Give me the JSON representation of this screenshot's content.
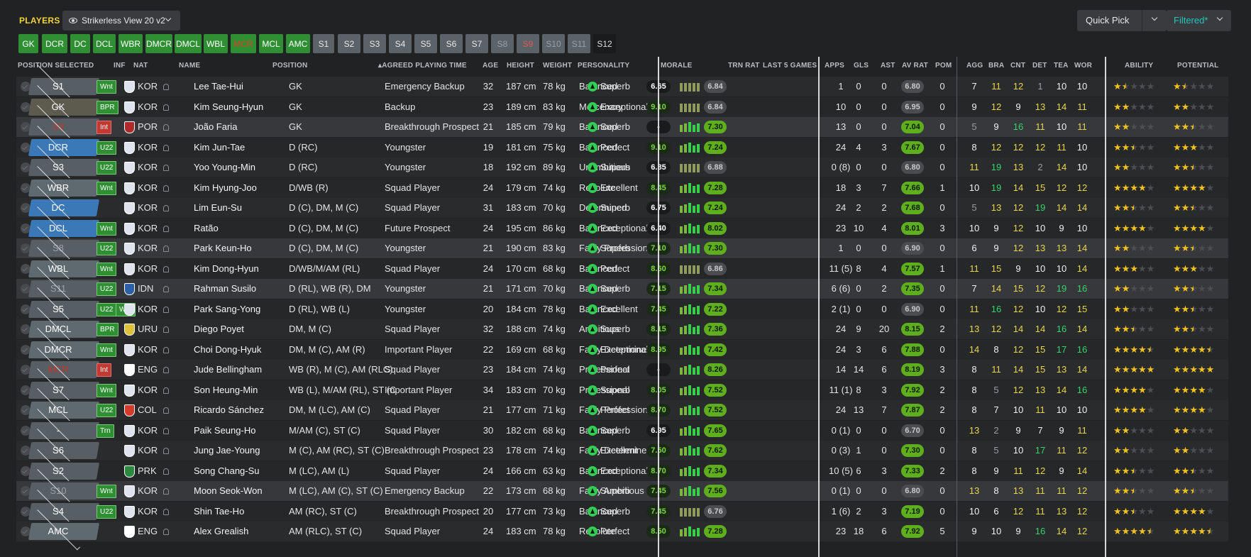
{
  "header": {
    "title": "PLAYERS",
    "view": "Strikerless View 20 v2",
    "quick_pick": "Quick Pick",
    "filtered": "Filtered*"
  },
  "tabs": [
    {
      "label": "GK",
      "kind": "g"
    },
    {
      "label": "DCR",
      "kind": "g"
    },
    {
      "label": "DC",
      "kind": "g"
    },
    {
      "label": "DCL",
      "kind": "g"
    },
    {
      "label": "WBR",
      "kind": "g"
    },
    {
      "label": "DMCR",
      "kind": "g"
    },
    {
      "label": "DMCL",
      "kind": "g"
    },
    {
      "label": "WBL",
      "kind": "g"
    },
    {
      "label": "MCR",
      "kind": "r"
    },
    {
      "label": "MCL",
      "kind": "g"
    },
    {
      "label": "AMC",
      "kind": "g"
    },
    {
      "label": "S1",
      "kind": "s"
    },
    {
      "label": "S2",
      "kind": "s"
    },
    {
      "label": "S3",
      "kind": "s"
    },
    {
      "label": "S4",
      "kind": "s"
    },
    {
      "label": "S5",
      "kind": "s"
    },
    {
      "label": "S6",
      "kind": "s"
    },
    {
      "label": "S7",
      "kind": "s"
    },
    {
      "label": "S8",
      "kind": "s dim"
    },
    {
      "label": "S9",
      "kind": "s red"
    },
    {
      "label": "S10",
      "kind": "s dim"
    },
    {
      "label": "S11",
      "kind": "s dim"
    },
    {
      "label": "S12",
      "kind": "k"
    }
  ],
  "columns": {
    "pos_sel": "POSITION SELECTED",
    "inf": "INF",
    "nat": "NAT",
    "name": "NAME",
    "position": "POSITION",
    "apt": "AGREED PLAYING TIME",
    "age": "AGE",
    "height": "HEIGHT",
    "weight": "WEIGHT",
    "personality": "PERSONALITY",
    "morale": "MORALE",
    "trn": "TRN RAT",
    "last5": "LAST 5 GAMES",
    "apps": "APPS",
    "gls": "GLS",
    "ast": "AST",
    "avrat": "AV RAT",
    "pom": "POM",
    "agg": "AGG",
    "bra": "BRA",
    "cnt": "CNT",
    "det": "DET",
    "tea": "TEA",
    "wor": "WOR",
    "ability": "ABILITY",
    "potential": "POTENTIAL"
  },
  "rows": [
    {
      "sel": "S1",
      "selc": "#575e64",
      "selt": "#fff",
      "inf": [
        "Wnt"
      ],
      "nat": "KOR",
      "flag": "#dfe3ee",
      "name": "Lee Tae-Hui",
      "position": "GK",
      "apt": "Emergency Backup",
      "age": "32",
      "height": "187 cm",
      "weight": "78 kg",
      "personality": "Balanced",
      "morale": "Superb",
      "trn": "6.65",
      "trnc": "dk",
      "l5": "6.84",
      "l5c": "gy",
      "apps": "1",
      "gls": "0",
      "ast": "0",
      "avr": "6.80",
      "avrc": "gy",
      "pom": "0",
      "agg": "7",
      "bra": "11",
      "cnt": "12",
      "det": "1",
      "tea": "10",
      "wor": "10",
      "ab": 1.5,
      "pot": 1.5
    },
    {
      "sel": "GK",
      "selc": "#5d5a4e",
      "selt": "#fff",
      "inf": [
        "BPR"
      ],
      "nat": "KOR",
      "flag": "#dfe3ee",
      "name": "Kim Seung-Hyun",
      "position": "GK",
      "apt": "Backup",
      "age": "23",
      "height": "189 cm",
      "weight": "83 kg",
      "personality": "Mercenary",
      "morale": "Exceptional",
      "trn": "9.10",
      "trnc": "gr",
      "l5": "6.84",
      "l5c": "gy",
      "apps": "10",
      "gls": "0",
      "ast": "0",
      "avr": "6.95",
      "avrc": "gy",
      "pom": "0",
      "agg": "9",
      "bra": "12",
      "cnt": "9",
      "det": "13",
      "tea": "14",
      "wor": "11",
      "ab": 2,
      "pot": 2
    },
    {
      "sel": "S9",
      "selc": "#575e64",
      "selt": "#c0392b",
      "inf": [
        "Int"
      ],
      "infred": true,
      "nat": "POR",
      "flag": "#b02a2a",
      "name": "João Faria",
      "position": "GK",
      "apt": "Breakthrough Prospect",
      "age": "21",
      "height": "185 cm",
      "weight": "79 kg",
      "personality": "Balanced",
      "morale": "Superb",
      "trn": "-",
      "trnc": "dk",
      "l5": "7.30",
      "l5c": "gr",
      "apps": "13",
      "gls": "0",
      "ast": "0",
      "avr": "7.04",
      "avrc": "gr",
      "pom": "0",
      "agg": "5",
      "bra": "9",
      "cnt": "16",
      "det": "11",
      "tea": "10",
      "wor": "11",
      "ab": 2,
      "pot": 2.5
    },
    {
      "sel": "DCR",
      "selc": "#3a78b8",
      "selt": "#fff",
      "inf": [
        "U22"
      ],
      "nat": "KOR",
      "flag": "#dfe3ee",
      "name": "Kim Jun-Tae",
      "position": "D (RC)",
      "apt": "Youngster",
      "age": "19",
      "height": "181 cm",
      "weight": "75 kg",
      "personality": "Balanced",
      "morale": "Perfect",
      "trn": "9.10",
      "trnc": "gr",
      "l5": "7.24",
      "l5c": "gr",
      "apps": "24",
      "gls": "4",
      "ast": "3",
      "avr": "7.67",
      "avrc": "gr",
      "pom": "0",
      "agg": "8",
      "bra": "12",
      "cnt": "12",
      "det": "12",
      "tea": "11",
      "wor": "10",
      "ab": 2.5,
      "pot": 3
    },
    {
      "sel": "S3",
      "selc": "#575e64",
      "selt": "#fff",
      "inf": [
        "U22"
      ],
      "nat": "KOR",
      "flag": "#dfe3ee",
      "name": "Yoo Young-Min",
      "position": "D (RC)",
      "apt": "Youngster",
      "age": "18",
      "height": "192 cm",
      "weight": "89 kg",
      "personality": "Unambitious",
      "morale": "Superb",
      "trn": "6.85",
      "trnc": "dk",
      "l5": "6.88",
      "l5c": "gy",
      "apps": "0 (8)",
      "gls": "0",
      "ast": "0",
      "avr": "6.80",
      "avrc": "gy",
      "pom": "0",
      "agg": "11",
      "bra": "19",
      "cnt": "13",
      "det": "2",
      "tea": "14",
      "wor": "10",
      "ab": 2,
      "pot": 2.5
    },
    {
      "sel": "WBR",
      "selc": "#5f6970",
      "selt": "#fff",
      "inf": [
        "Wnt"
      ],
      "nat": "KOR",
      "flag": "#dfe3ee",
      "name": "Kim Hyung-Joo",
      "position": "D/WB (R)",
      "apt": "Squad Player",
      "age": "24",
      "height": "179 cm",
      "weight": "74 kg",
      "personality": "Resolute",
      "morale": "Excellent",
      "trn": "8.45",
      "trnc": "gr",
      "l5": "7.28",
      "l5c": "gr",
      "apps": "18",
      "gls": "3",
      "ast": "7",
      "avr": "7.66",
      "avrc": "gr",
      "pom": "1",
      "agg": "10",
      "bra": "19",
      "cnt": "14",
      "det": "15",
      "tea": "12",
      "wor": "12",
      "ab": 4,
      "pot": 4
    },
    {
      "sel": "DC",
      "selc": "#3a78b8",
      "selt": "#fff",
      "inf": [],
      "nat": "KOR",
      "flag": "#dfe3ee",
      "name": "Lim Eun-Su",
      "position": "D (C), DM, M (C)",
      "apt": "Squad Player",
      "age": "31",
      "height": "183 cm",
      "weight": "70 kg",
      "personality": "Determined",
      "morale": "Superb",
      "trn": "6.75",
      "trnc": "dk",
      "l5": "7.24",
      "l5c": "gr",
      "apps": "24",
      "gls": "2",
      "ast": "2",
      "avr": "7.68",
      "avrc": "gr",
      "pom": "0",
      "agg": "5",
      "bra": "13",
      "cnt": "12",
      "det": "19",
      "tea": "14",
      "wor": "14",
      "ab": 2.5,
      "pot": 2.5
    },
    {
      "sel": "DCL",
      "selc": "#3a78b8",
      "selt": "#fff",
      "inf": [
        "Wnt"
      ],
      "nat": "KOR",
      "flag": "#dfe3ee",
      "name": "Ratão",
      "position": "D (C), DM, M (C)",
      "apt": "Future Prospect",
      "age": "24",
      "height": "195 cm",
      "weight": "86 kg",
      "personality": "Balanced",
      "morale": "Exceptional",
      "trn": "6.40",
      "trnc": "dk",
      "l5": "8.02",
      "l5c": "gr",
      "apps": "23",
      "gls": "10",
      "ast": "4",
      "avr": "8.01",
      "avrc": "gr",
      "pom": "3",
      "agg": "10",
      "bra": "9",
      "cnt": "12",
      "det": "10",
      "tea": "9",
      "wor": "10",
      "ab": 4,
      "pot": 4
    },
    {
      "sel": "S8",
      "selc": "#575e64",
      "selt": "#9aa0a5",
      "inf": [
        "U22"
      ],
      "nat": "KOR",
      "flag": "#dfe3ee",
      "name": "Park Keun-Ho",
      "position": "D (C), DM, M (C)",
      "apt": "Youngster",
      "age": "21",
      "height": "190 cm",
      "weight": "83 kg",
      "personality": "Fairly Professional",
      "morale": "Superb",
      "trn": "7.10",
      "trnc": "gr",
      "l5": "7.30",
      "l5c": "gr",
      "apps": "1",
      "gls": "0",
      "ast": "0",
      "avr": "6.90",
      "avrc": "gy",
      "pom": "0",
      "agg": "6",
      "bra": "9",
      "cnt": "12",
      "det": "13",
      "tea": "13",
      "wor": "14",
      "ab": 2,
      "pot": 2.5
    },
    {
      "sel": "WBL",
      "selc": "#5f6970",
      "selt": "#fff",
      "inf": [
        "Wnt"
      ],
      "nat": "KOR",
      "flag": "#dfe3ee",
      "name": "Kim Dong-Hyun",
      "position": "D/WB/M/AM (RL)",
      "apt": "Squad Player",
      "age": "24",
      "height": "170 cm",
      "weight": "68 kg",
      "personality": "Balanced",
      "morale": "Perfect",
      "trn": "8.60",
      "trnc": "gr",
      "l5": "6.86",
      "l5c": "gy",
      "apps": "11 (5)",
      "gls": "8",
      "ast": "4",
      "avr": "7.57",
      "avrc": "gr",
      "pom": "1",
      "agg": "11",
      "bra": "15",
      "cnt": "9",
      "det": "10",
      "tea": "10",
      "wor": "14",
      "ab": 3,
      "pot": 3
    },
    {
      "sel": "S11",
      "selc": "#575e64",
      "selt": "#9aa0a5",
      "inf": [
        "U22"
      ],
      "nat": "IDN",
      "flag": "#2b5fa8",
      "name": "Rahman Susilo",
      "position": "D (RL), WB (R), DM",
      "apt": "Youngster",
      "age": "21",
      "height": "171 cm",
      "weight": "70 kg",
      "personality": "Balanced",
      "morale": "Superb",
      "trn": "7.15",
      "trnc": "gr",
      "l5": "7.34",
      "l5c": "gr",
      "apps": "6 (6)",
      "gls": "0",
      "ast": "2",
      "avr": "7.35",
      "avrc": "gr",
      "pom": "0",
      "agg": "7",
      "bra": "14",
      "cnt": "15",
      "det": "12",
      "tea": "19",
      "wor": "16",
      "ab": 2,
      "pot": 2.5
    },
    {
      "sel": "S5",
      "selc": "#575e64",
      "selt": "#fff",
      "inf": [
        "U22",
        "Wnt"
      ],
      "nat": "KOR",
      "flag": "#dfe3ee",
      "name": "Park Sang-Yong",
      "position": "D (RL), WB (L)",
      "apt": "Youngster",
      "age": "20",
      "height": "184 cm",
      "weight": "78 kg",
      "personality": "Balanced",
      "morale": "Excellent",
      "trn": "7.45",
      "trnc": "gr",
      "l5": "7.22",
      "l5c": "gr",
      "apps": "2 (1)",
      "gls": "0",
      "ast": "0",
      "avr": "6.90",
      "avrc": "gy",
      "pom": "0",
      "agg": "11",
      "bra": "16",
      "cnt": "12",
      "det": "10",
      "tea": "12",
      "wor": "15",
      "ab": 2,
      "pot": 2.5
    },
    {
      "sel": "DMCL",
      "selc": "#5f6970",
      "selt": "#fff",
      "inf": [
        "BPR"
      ],
      "nat": "URU",
      "flag": "#e0c13b",
      "name": "Diego Poyet",
      "position": "DM, M (C)",
      "apt": "Squad Player",
      "age": "32",
      "height": "188 cm",
      "weight": "74 kg",
      "personality": "Ambitious",
      "morale": "Superb",
      "trn": "8.15",
      "trnc": "gr",
      "l5": "7.36",
      "l5c": "gr",
      "apps": "24",
      "gls": "9",
      "ast": "20",
      "avr": "8.15",
      "avrc": "gr",
      "pom": "2",
      "agg": "13",
      "bra": "12",
      "cnt": "14",
      "det": "14",
      "tea": "16",
      "wor": "14",
      "ab": 2.5,
      "pot": 2.5
    },
    {
      "sel": "DMCR",
      "selc": "#5f6970",
      "selt": "#fff",
      "inf": [
        "Wnt"
      ],
      "nat": "KOR",
      "flag": "#dfe3ee",
      "name": "Choi Dong-Hyuk",
      "position": "DM, M (C), AM (R)",
      "apt": "Important Player",
      "age": "22",
      "height": "169 cm",
      "weight": "68 kg",
      "personality": "Fairly Determined",
      "morale": "Exceptional",
      "trn": "8.95",
      "trnc": "gr",
      "l5": "7.42",
      "l5c": "gr",
      "apps": "24",
      "gls": "3",
      "ast": "6",
      "avr": "7.88",
      "avrc": "gr",
      "pom": "0",
      "agg": "14",
      "bra": "8",
      "cnt": "12",
      "det": "15",
      "tea": "17",
      "wor": "16",
      "ab": 4.5,
      "pot": 4.5
    },
    {
      "sel": "MCR",
      "selc": "#575e64",
      "selt": "#c0392b",
      "inf": [
        "Int"
      ],
      "infred": true,
      "nat": "ENG",
      "flag": "#ffffff",
      "name": "Jude Bellingham",
      "position": "WB (R), M (C), AM (RLC)",
      "apt": "Squad Player",
      "age": "23",
      "height": "184 cm",
      "weight": "74 kg",
      "personality": "Professional",
      "morale": "Perfect",
      "trn": "-",
      "trnc": "dk",
      "l5": "8.26",
      "l5c": "gr",
      "apps": "14",
      "gls": "14",
      "ast": "6",
      "avr": "8.19",
      "avrc": "gr",
      "pom": "3",
      "agg": "8",
      "bra": "11",
      "cnt": "14",
      "det": "15",
      "tea": "13",
      "wor": "14",
      "ab": 5,
      "pot": 5
    },
    {
      "sel": "S7",
      "selc": "#575e64",
      "selt": "#fff",
      "inf": [
        "Wnt"
      ],
      "nat": "KOR",
      "flag": "#dfe3ee",
      "name": "Son Heung-Min",
      "position": "WB (L), M/AM (RL), ST (C)",
      "apt": "Important Player",
      "age": "34",
      "height": "183 cm",
      "weight": "70 kg",
      "personality": "Professional",
      "morale": "Superb",
      "trn": "8.05",
      "trnc": "gr",
      "l5": "7.52",
      "l5c": "gr",
      "apps": "11 (1)",
      "gls": "8",
      "ast": "3",
      "avr": "7.92",
      "avrc": "gr",
      "pom": "2",
      "agg": "8",
      "bra": "5",
      "cnt": "12",
      "det": "13",
      "tea": "14",
      "wor": "16",
      "ab": 4,
      "pot": 4
    },
    {
      "sel": "MCL",
      "selc": "#5f6970",
      "selt": "#fff",
      "inf": [
        "U22"
      ],
      "nat": "COL",
      "flag": "#d63a2a",
      "name": "Ricardo Sánchez",
      "position": "DM, M (LC), AM (C)",
      "apt": "Squad Player",
      "age": "21",
      "height": "177 cm",
      "weight": "71 kg",
      "personality": "Fairly Professional",
      "morale": "Perfect",
      "trn": "8.70",
      "trnc": "gr",
      "l5": "7.52",
      "l5c": "gr",
      "apps": "24",
      "gls": "13",
      "ast": "7",
      "avr": "7.87",
      "avrc": "gr",
      "pom": "2",
      "agg": "8",
      "bra": "7",
      "cnt": "10",
      "det": "11",
      "tea": "10",
      "wor": "10",
      "ab": 4,
      "pot": 4
    },
    {
      "sel": "-",
      "selc": "#575e64",
      "selt": "#fff",
      "inf": [
        "Trn"
      ],
      "nat": "KOR",
      "flag": "#dfe3ee",
      "name": "Paik Seung-Ho",
      "position": "M/AM (C), ST (C)",
      "apt": "Squad Player",
      "age": "30",
      "height": "182 cm",
      "weight": "68 kg",
      "personality": "Balanced",
      "morale": "Superb",
      "trn": "6.95",
      "trnc": "dk",
      "l5": "7.65",
      "l5c": "gr",
      "apps": "0 (1)",
      "gls": "0",
      "ast": "0",
      "avr": "6.70",
      "avrc": "gy",
      "pom": "0",
      "agg": "13",
      "bra": "2",
      "cnt": "9",
      "det": "7",
      "tea": "9",
      "wor": "11",
      "ab": 2,
      "pot": 2
    },
    {
      "sel": "S6",
      "selc": "#575e64",
      "selt": "#fff",
      "inf": [],
      "nat": "KOR",
      "flag": "#dfe3ee",
      "name": "Jung Jae-Young",
      "position": "M (C), AM (RC), ST (C)",
      "apt": "Breakthrough Prospect",
      "age": "23",
      "height": "178 cm",
      "weight": "74 kg",
      "personality": "Fairly Determined",
      "morale": "Excellent",
      "trn": "7.50",
      "trnc": "gr",
      "l5": "7.62",
      "l5c": "gr",
      "apps": "0 (3)",
      "gls": "1",
      "ast": "0",
      "avr": "7.30",
      "avrc": "gr",
      "pom": "0",
      "agg": "8",
      "bra": "5",
      "cnt": "10",
      "det": "17",
      "tea": "11",
      "wor": "12",
      "ab": 2,
      "pot": 2
    },
    {
      "sel": "S2",
      "selc": "#575e64",
      "selt": "#fff",
      "inf": [],
      "nat": "PRK",
      "flag": "#2b8a3e",
      "name": "Song Chang-Su",
      "position": "M (LC), AM (L)",
      "apt": "Squad Player",
      "age": "24",
      "height": "166 cm",
      "weight": "63 kg",
      "personality": "Balanced",
      "morale": "Exceptional",
      "trn": "8.70",
      "trnc": "gr",
      "l5": "7.34",
      "l5c": "gr",
      "apps": "10 (5)",
      "gls": "6",
      "ast": "3",
      "avr": "7.33",
      "avrc": "gr",
      "pom": "2",
      "agg": "8",
      "bra": "9",
      "cnt": "11",
      "det": "12",
      "tea": "9",
      "wor": "14",
      "ab": 2.5,
      "pot": 2.5
    },
    {
      "sel": "S10",
      "selc": "#575e64",
      "selt": "#9aa0a5",
      "inf": [
        "Wnt"
      ],
      "nat": "KOR",
      "flag": "#dfe3ee",
      "name": "Moon Seok-Won",
      "position": "M (LC), AM (C), ST (C)",
      "apt": "Emergency Backup",
      "age": "22",
      "height": "173 cm",
      "weight": "68 kg",
      "personality": "Fairly Ambitious",
      "morale": "Superb",
      "trn": "7.45",
      "trnc": "gr",
      "l5": "7.56",
      "l5c": "gr",
      "apps": "0 (1)",
      "gls": "0",
      "ast": "0",
      "avr": "6.80",
      "avrc": "gy",
      "pom": "0",
      "agg": "13",
      "bra": "8",
      "cnt": "13",
      "det": "11",
      "tea": "11",
      "wor": "12",
      "ab": 2.5,
      "pot": 2.5
    },
    {
      "sel": "S4",
      "selc": "#575e64",
      "selt": "#fff",
      "inf": [
        "U22"
      ],
      "nat": "KOR",
      "flag": "#dfe3ee",
      "name": "Shin Tae-Ho",
      "position": "AM (RC), ST (C)",
      "apt": "Breakthrough Prospect",
      "age": "20",
      "height": "177 cm",
      "weight": "73 kg",
      "personality": "Balanced",
      "morale": "Superb",
      "trn": "7.45",
      "trnc": "gr",
      "l5": "6.76",
      "l5c": "gy",
      "apps": "1 (6)",
      "gls": "2",
      "ast": "3",
      "avr": "7.19",
      "avrc": "gr",
      "pom": "0",
      "agg": "10",
      "bra": "6",
      "cnt": "12",
      "det": "11",
      "tea": "13",
      "wor": "12",
      "ab": 2.5,
      "pot": 4
    },
    {
      "sel": "AMC",
      "selc": "#5f6970",
      "selt": "#fff",
      "inf": [],
      "nat": "ENG",
      "flag": "#ffffff",
      "name": "Alex Grealish",
      "position": "AM (RLC), ST (C)",
      "apt": "Squad Player",
      "age": "24",
      "height": "183 cm",
      "weight": "78 kg",
      "personality": "Resolute",
      "morale": "Perfect",
      "trn": "8.50",
      "trnc": "gr",
      "l5": "7.28",
      "l5c": "gr",
      "apps": "23",
      "gls": "18",
      "ast": "6",
      "avr": "7.92",
      "avrc": "gr",
      "pom": "5",
      "agg": "9",
      "bra": "10",
      "cnt": "9",
      "det": "16",
      "tea": "14",
      "wor": "12",
      "ab": 4.5,
      "pot": 4.5
    }
  ]
}
